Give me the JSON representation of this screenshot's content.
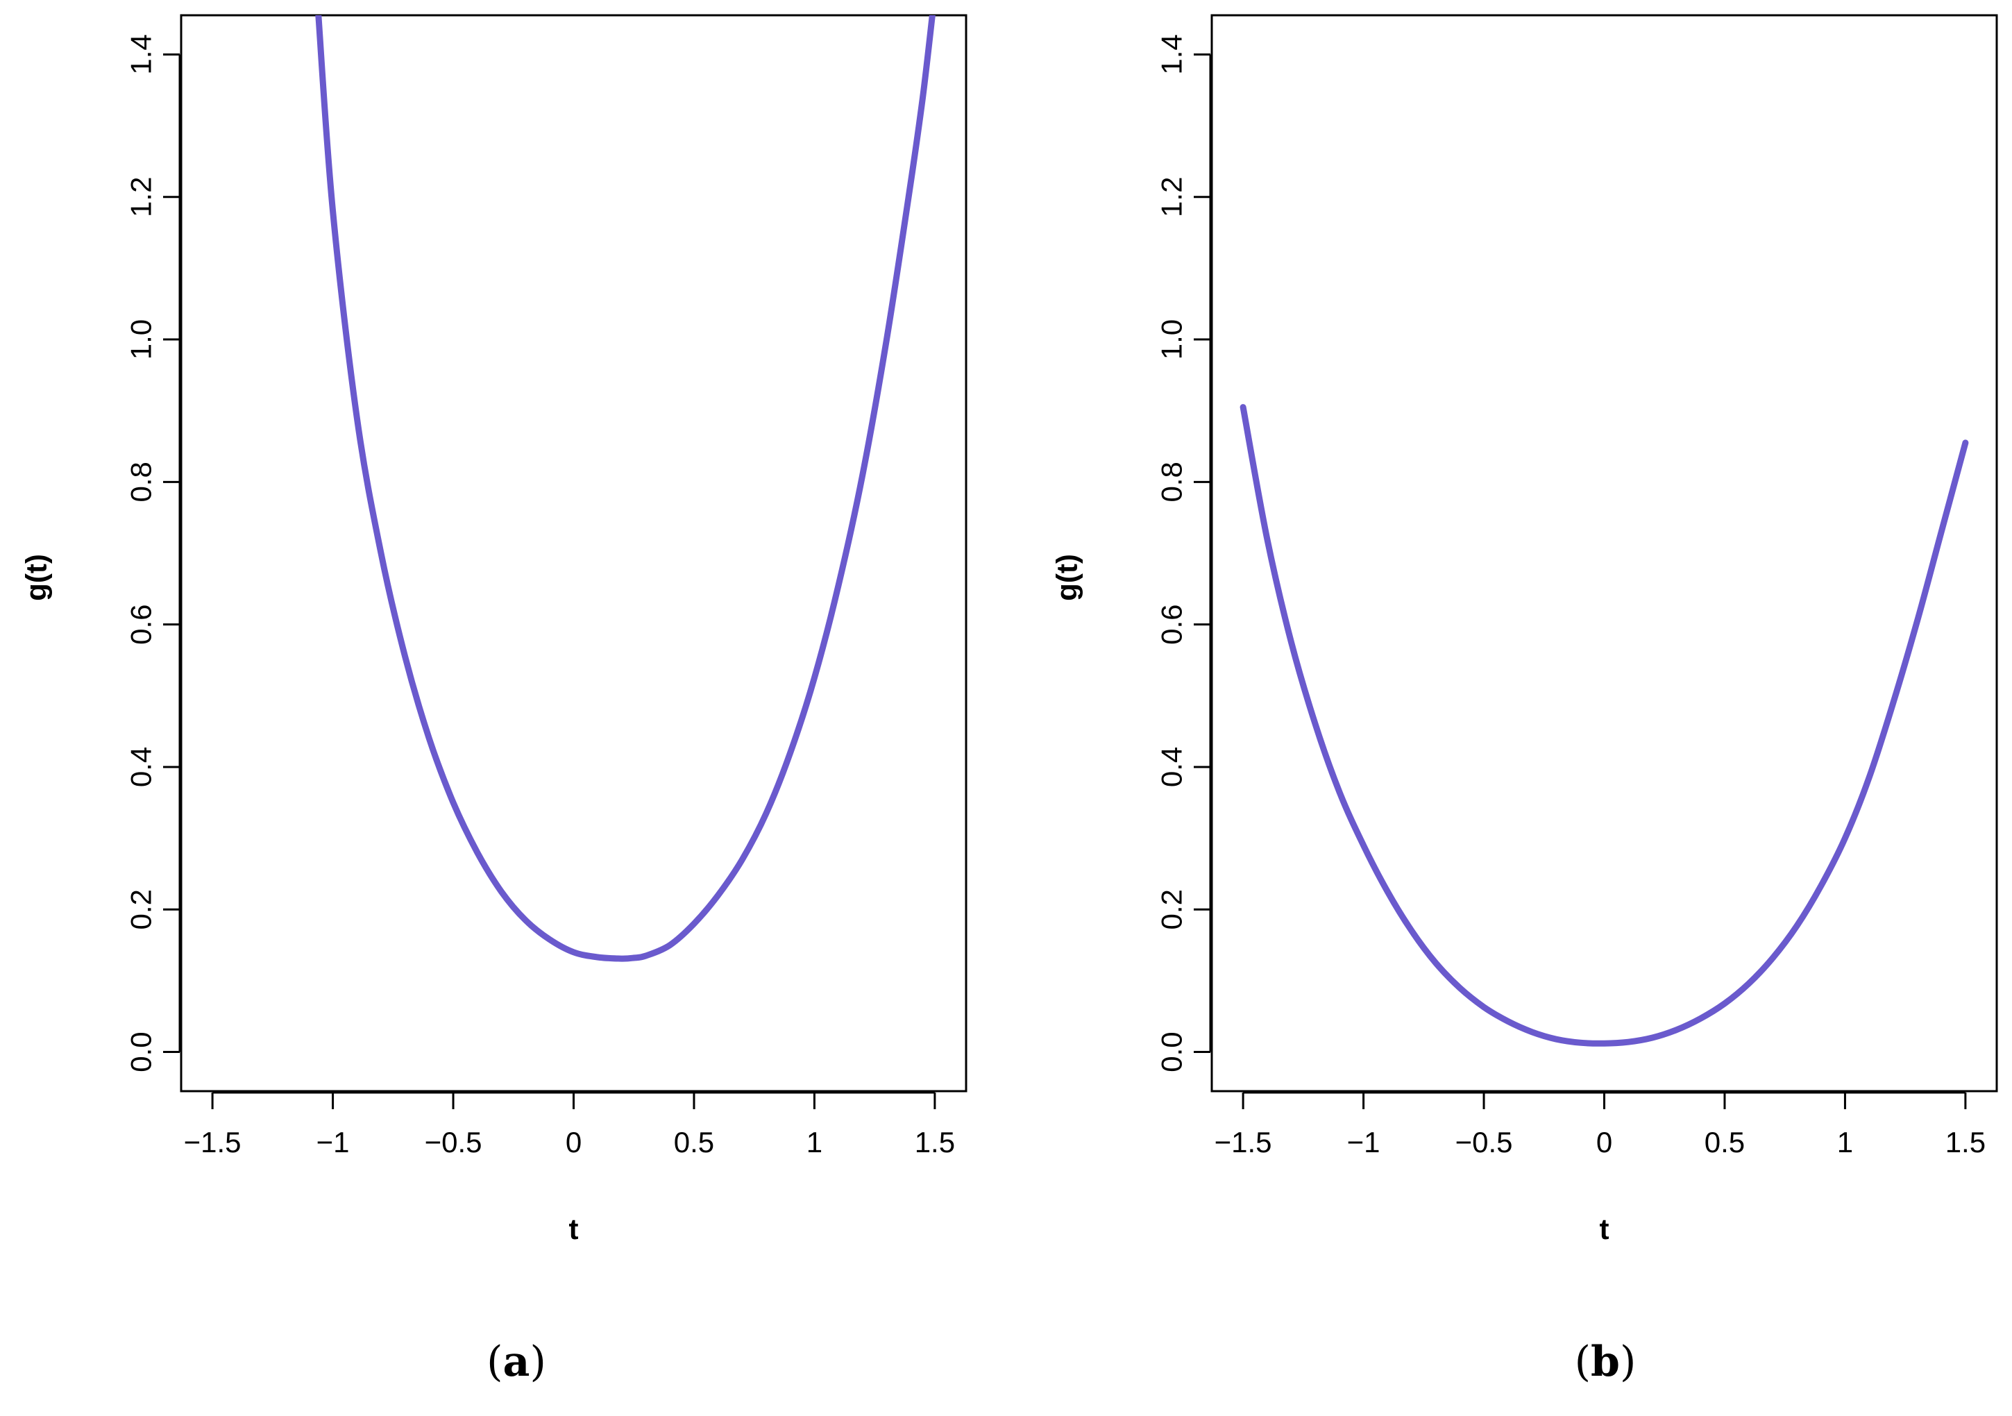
{
  "chart_data": [
    {
      "type": "line",
      "caption_open": "(",
      "caption_letter": "a",
      "caption_close": ")",
      "xlabel": "t",
      "ylabel": "g(t)",
      "xlim": [
        -1.63,
        1.63
      ],
      "ylim": [
        -0.055,
        1.455
      ],
      "xticks": [
        -1.5,
        -1,
        -0.5,
        0,
        0.5,
        1,
        1.5
      ],
      "xtick_labels": [
        "−1.5",
        "−1",
        "−0.5",
        "0",
        "0.5",
        "1",
        "1.5"
      ],
      "yticks": [
        0.0,
        0.2,
        0.4,
        0.6,
        0.8,
        1.0,
        1.2,
        1.4
      ],
      "ytick_labels": [
        "0.0",
        "0.2",
        "0.4",
        "0.6",
        "0.8",
        "1.0",
        "1.2",
        "1.4"
      ],
      "grid": false,
      "series": [
        {
          "color": "#6a5acd",
          "x": [
            -1.06,
            -1.0,
            -0.9,
            -0.8,
            -0.7,
            -0.6,
            -0.5,
            -0.4,
            -0.3,
            -0.2,
            -0.1,
            0.0,
            0.1,
            0.2,
            0.25,
            0.3,
            0.4,
            0.5,
            0.6,
            0.7,
            0.8,
            0.9,
            1.0,
            1.1,
            1.2,
            1.3,
            1.4,
            1.45,
            1.49
          ],
          "y": [
            1.455,
            1.18,
            0.89,
            0.7,
            0.555,
            0.44,
            0.35,
            0.28,
            0.225,
            0.185,
            0.158,
            0.14,
            0.133,
            0.131,
            0.132,
            0.135,
            0.15,
            0.18,
            0.22,
            0.27,
            0.335,
            0.42,
            0.525,
            0.655,
            0.81,
            1.0,
            1.22,
            1.34,
            1.455
          ]
        }
      ]
    },
    {
      "type": "line",
      "caption_open": "(",
      "caption_letter": "b",
      "caption_close": ")",
      "xlabel": "t",
      "ylabel": "g(t)",
      "xlim": [
        -1.63,
        1.63
      ],
      "ylim": [
        -0.055,
        1.455
      ],
      "xticks": [
        -1.5,
        -1,
        -0.5,
        0,
        0.5,
        1,
        1.5
      ],
      "xtick_labels": [
        "−1.5",
        "−1",
        "−0.5",
        "0",
        "0.5",
        "1",
        "1.5"
      ],
      "yticks": [
        0.0,
        0.2,
        0.4,
        0.6,
        0.8,
        1.0,
        1.2,
        1.4
      ],
      "ytick_labels": [
        "0.0",
        "0.2",
        "0.4",
        "0.6",
        "0.8",
        "1.0",
        "1.2",
        "1.4"
      ],
      "grid": false,
      "series": [
        {
          "color": "#6a5acd",
          "x": [
            -1.5,
            -1.4,
            -1.3,
            -1.2,
            -1.1,
            -1.0,
            -0.9,
            -0.8,
            -0.7,
            -0.6,
            -0.5,
            -0.4,
            -0.3,
            -0.2,
            -0.1,
            0.0,
            0.1,
            0.2,
            0.3,
            0.4,
            0.5,
            0.6,
            0.7,
            0.8,
            0.9,
            1.0,
            1.1,
            1.2,
            1.3,
            1.4,
            1.5
          ],
          "y": [
            0.905,
            0.72,
            0.575,
            0.46,
            0.365,
            0.29,
            0.225,
            0.17,
            0.125,
            0.09,
            0.063,
            0.043,
            0.028,
            0.018,
            0.013,
            0.012,
            0.014,
            0.02,
            0.031,
            0.047,
            0.068,
            0.096,
            0.132,
            0.177,
            0.233,
            0.3,
            0.385,
            0.49,
            0.605,
            0.73,
            0.855
          ]
        }
      ]
    }
  ]
}
